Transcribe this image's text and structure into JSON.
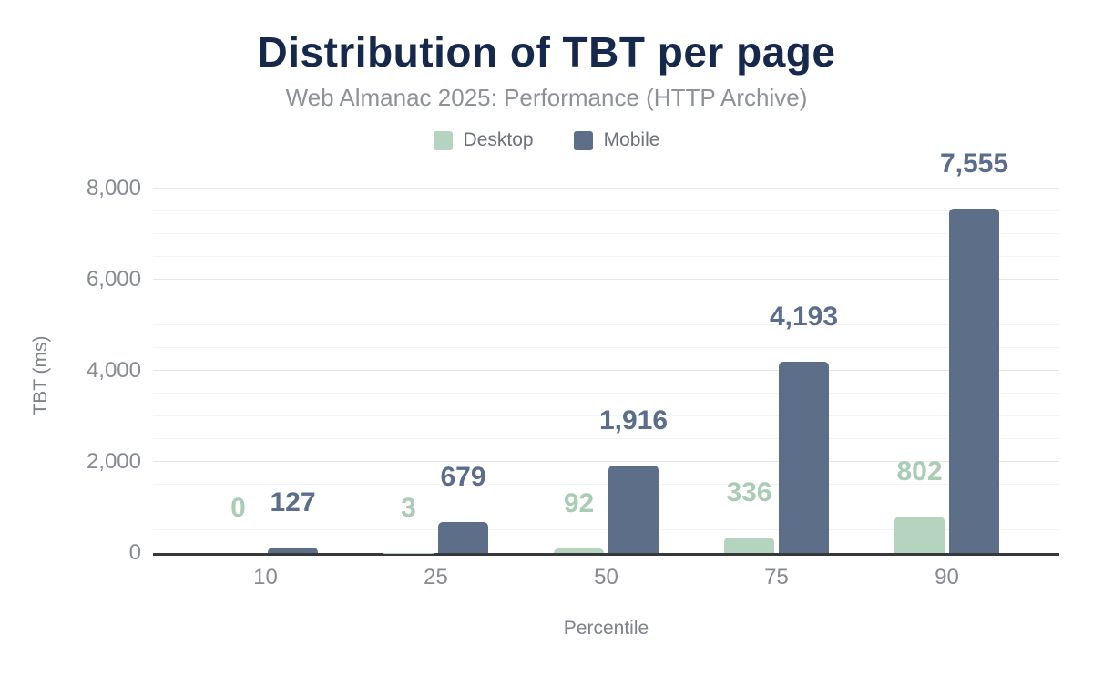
{
  "page": {
    "title": "Distribution of TBT per page",
    "subtitle": "Web Almanac 2025: Performance (HTTP Archive)"
  },
  "chart_data": {
    "type": "bar",
    "title": "Distribution of TBT per page",
    "subtitle": "Web Almanac 2025: Performance (HTTP Archive)",
    "xlabel": "Percentile",
    "ylabel": "TBT (ms)",
    "categories": [
      "10",
      "25",
      "50",
      "75",
      "90"
    ],
    "series": [
      {
        "name": "Desktop",
        "color": "#b5d4c0",
        "label_color": "#a8ccb4",
        "values": [
          0,
          3,
          92,
          336,
          802
        ],
        "value_labels": [
          "0",
          "3",
          "92",
          "336",
          "802"
        ]
      },
      {
        "name": "Mobile",
        "color": "#5d6e89",
        "label_color": "#5a6d8c",
        "values": [
          127,
          679,
          1916,
          4193,
          7555
        ],
        "value_labels": [
          "127",
          "679",
          "1,916",
          "4,193",
          "7,555"
        ]
      }
    ],
    "ylim": [
      0,
      8000
    ],
    "yticks": [
      0,
      2000,
      4000,
      6000,
      8000
    ],
    "ytick_labels": [
      "0",
      "2,000",
      "4,000",
      "6,000",
      "8,000"
    ],
    "minor_grid_step": 500,
    "major_grid_step": 2000,
    "grid": true,
    "legend_position": "top"
  },
  "colors": {
    "background": "#ffffff",
    "title": "#16294d",
    "subtitle": "#8d9199",
    "tick_label": "#868a92",
    "axis_title": "#7e828a",
    "legend_label": "#6d717a",
    "axis_line": "#37383a",
    "major_grid": "#e5e7ea",
    "minor_grid": "#f3f4f6",
    "desktop": "#b5d4c0",
    "mobile": "#5d6e89"
  }
}
